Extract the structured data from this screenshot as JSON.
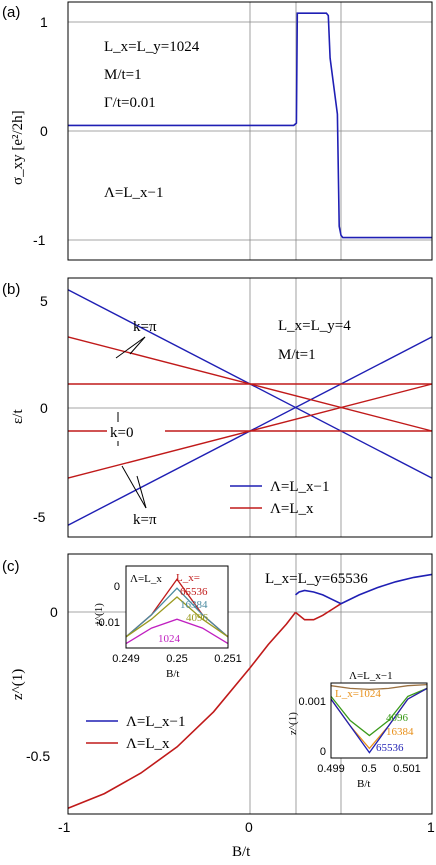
{
  "colors": {
    "blue": "#1f1fb4",
    "red": "#c01a1a",
    "lime": "#3a9a1a",
    "orange": "#e8901a",
    "teal": "#4a8aa0",
    "olive": "#9a9a20",
    "magenta": "#c020c0",
    "brown": "#9a7040",
    "darkred": "#c01a1a"
  },
  "panels": [
    "(a)",
    "(b)",
    "(c)"
  ],
  "xlabel": "B/t",
  "chart_data": [
    {
      "type": "line",
      "panel": "(a)",
      "ylabel": "σ_xy [e²/2h]",
      "xlim": [
        -1,
        1
      ],
      "ylim": [
        -1.2,
        1.1
      ],
      "xticks": [
        "-1",
        "0",
        "1"
      ],
      "yticks": [
        "1",
        "0",
        "-1"
      ],
      "grid_x": [
        0,
        0.25,
        0.5
      ],
      "grid_y": [
        1,
        0,
        -1
      ],
      "annotations": [
        "L_x=L_y=1024",
        "M/t=1",
        "Γ/t=0.01",
        "Λ=L_x−1"
      ],
      "series": [
        {
          "name": "",
          "color": "blue",
          "x": [
            -1,
            0.24,
            0.255,
            0.26,
            0.42,
            0.43,
            0.44,
            0.48,
            0.49,
            0.5,
            0.51,
            1
          ],
          "y": [
            0,
            0,
            0.02,
            1,
            1,
            0.98,
            0.6,
            0.1,
            -0.9,
            -0.98,
            -1,
            -1
          ]
        }
      ]
    },
    {
      "type": "line",
      "panel": "(b)",
      "ylabel": "ε/t",
      "xlim": [
        -1,
        1
      ],
      "ylim": [
        -5.5,
        5.5
      ],
      "yticks": [
        "5",
        "0",
        "-5"
      ],
      "grid_x": [
        0,
        0.25,
        0.5
      ],
      "grid_y": [
        0
      ],
      "annotations": [
        "k=π",
        "k=0",
        "k=π",
        "L_x=L_y=4",
        "M/t=1"
      ],
      "legend": [
        {
          "label": "Λ=L_x−1",
          "color": "blue"
        },
        {
          "label": "Λ=L_x",
          "color": "red"
        }
      ],
      "lines": [
        {
          "color": "blue",
          "x": [
            -1,
            1
          ],
          "y": [
            5,
            -3
          ]
        },
        {
          "color": "blue",
          "x": [
            -1,
            1
          ],
          "y": [
            -5,
            3
          ]
        },
        {
          "color": "red",
          "x": [
            -1,
            1
          ],
          "y": [
            3,
            -1
          ]
        },
        {
          "color": "red",
          "x": [
            -1,
            1
          ],
          "y": [
            -3,
            1
          ]
        },
        {
          "color": "red",
          "x": [
            -1,
            1
          ],
          "y": [
            1,
            1
          ]
        },
        {
          "color": "red",
          "x": [
            -1,
            1
          ],
          "y": [
            -1,
            -1
          ]
        }
      ]
    },
    {
      "type": "line",
      "panel": "(c)",
      "ylabel": "z^(1)",
      "xlim": [
        -1,
        1
      ],
      "ylim": [
        -0.72,
        0.17
      ],
      "yticks": [
        "0",
        "-0.5"
      ],
      "grid_x": [
        0,
        0.25,
        0.5
      ],
      "grid_y": [
        0
      ],
      "annotation": "L_x=L_y=65536",
      "legend": [
        {
          "label": "Λ=L_x−1",
          "color": "blue"
        },
        {
          "label": "Λ=L_x",
          "color": "red"
        }
      ],
      "series": [
        {
          "name": "Λ=L_x",
          "color": "red",
          "x": [
            -1,
            -0.8,
            -0.6,
            -0.4,
            -0.2,
            0,
            0.1,
            0.2,
            0.25
          ],
          "y": [
            -0.7,
            -0.65,
            -0.58,
            -0.49,
            -0.37,
            -0.22,
            -0.14,
            -0.07,
            -0.03
          ]
        },
        {
          "name": "Λ=L_x−1 (lower)",
          "color": "red",
          "x": [
            0.25,
            0.3,
            0.35,
            0.4,
            0.45,
            0.5
          ],
          "y": [
            -0.03,
            -0.055,
            -0.055,
            -0.04,
            -0.02,
            0
          ]
        },
        {
          "name": "Λ=L_x−1",
          "color": "blue",
          "x": [
            0.25,
            0.27,
            0.3,
            0.35,
            0.4,
            0.45,
            0.5,
            0.6,
            0.7,
            0.8,
            0.9,
            1
          ],
          "y": [
            0.03,
            0.04,
            0.045,
            0.04,
            0.03,
            0.015,
            0,
            0.03,
            0.055,
            0.075,
            0.09,
            0.1
          ]
        }
      ]
    },
    {
      "type": "line",
      "panel": "(c) inset left",
      "ylabel": "z^(1)",
      "xlabel": "B/t",
      "xlim": [
        0.249,
        0.251
      ],
      "ylim": [
        -0.0155,
        0.003
      ],
      "xticks": [
        "0.249",
        "0.25",
        "0.251"
      ],
      "yticks": [
        "0",
        "-0.01"
      ],
      "title": "Λ=L_x",
      "series": [
        {
          "name": "65536",
          "color": "darkred",
          "x": [
            0.249,
            0.2495,
            0.25,
            0.2505,
            0.251
          ],
          "y": [
            -0.013,
            -0.008,
            0,
            -0.008,
            -0.013
          ]
        },
        {
          "name": "16384",
          "color": "teal",
          "x": [
            0.249,
            0.2495,
            0.25,
            0.2505,
            0.251
          ],
          "y": [
            -0.013,
            -0.008,
            -0.002,
            -0.008,
            -0.013
          ]
        },
        {
          "name": "4096",
          "color": "olive",
          "x": [
            0.249,
            0.2495,
            0.25,
            0.2505,
            0.251
          ],
          "y": [
            -0.013,
            -0.009,
            -0.004,
            -0.009,
            -0.013
          ]
        },
        {
          "name": "1024",
          "color": "magenta",
          "x": [
            0.249,
            0.2495,
            0.25,
            0.2505,
            0.251
          ],
          "y": [
            -0.0145,
            -0.011,
            -0.009,
            -0.011,
            -0.0145
          ]
        }
      ],
      "labels": [
        "L_x=",
        "65536",
        "16384",
        "4096",
        "1024"
      ]
    },
    {
      "type": "line",
      "panel": "(c) inset right",
      "ylabel": "z^(1)",
      "xlabel": "B/t",
      "xlim": [
        0.499,
        0.5015
      ],
      "ylim": [
        -0.0001,
        0.0013
      ],
      "xticks": [
        "0.499",
        "0.5",
        "0.501"
      ],
      "yticks": [
        "0.001",
        "0"
      ],
      "title": "Λ=L_x−1",
      "series": [
        {
          "name": "L_x=1024",
          "color": "brown",
          "x": [
            0.499,
            0.4995,
            0.5,
            0.5005,
            0.501,
            0.5015
          ],
          "y": [
            0.00125,
            0.0012,
            0.00118,
            0.0012,
            0.00125,
            0.00127
          ]
        },
        {
          "name": "4096",
          "color": "lime",
          "x": [
            0.499,
            0.4995,
            0.5,
            0.5005,
            0.501,
            0.5015
          ],
          "y": [
            0.00105,
            0.0006,
            0.00032,
            0.0006,
            0.00105,
            0.0012
          ]
        },
        {
          "name": "16384",
          "color": "orange",
          "x": [
            0.499,
            0.4995,
            0.5,
            0.5005,
            0.501,
            0.5015
          ],
          "y": [
            0.001,
            0.0005,
            8e-05,
            0.0005,
            0.001,
            0.0012
          ]
        },
        {
          "name": "65536",
          "color": "blue",
          "x": [
            0.499,
            0.4995,
            0.5,
            0.5005,
            0.501,
            0.5015
          ],
          "y": [
            0.001,
            0.0005,
            0,
            0.0005,
            0.001,
            0.0012
          ]
        }
      ],
      "labels": [
        "L_x=1024",
        "4096",
        "16384",
        "65536"
      ]
    }
  ]
}
